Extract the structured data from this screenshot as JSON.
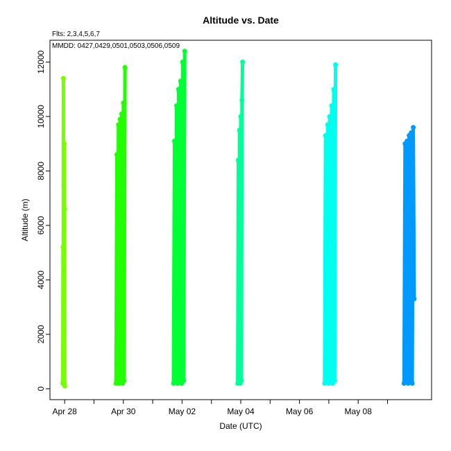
{
  "chart_data": {
    "type": "scatter",
    "title": "Altitude  vs. Date",
    "subtitle_fits": "Flts: 2,3,4,5,6,7",
    "subtitle_mmdd": "MMDD: 0427,0429,0501,0503,0506,0509",
    "xlabel": "Date (UTC)",
    "ylabel": "Altitude (m)",
    "xlim": [
      "2023-04-27T12:00",
      "2023-05-10T12:00"
    ],
    "ylim": [
      -400,
      12800
    ],
    "x_ticks": [
      {
        "date": "2023-04-28",
        "label": "Apr 28"
      },
      {
        "date": "2023-04-29",
        "label": ""
      },
      {
        "date": "2023-04-30",
        "label": "Apr 30"
      },
      {
        "date": "2023-05-01",
        "label": ""
      },
      {
        "date": "2023-05-02",
        "label": "May 02"
      },
      {
        "date": "2023-05-03",
        "label": ""
      },
      {
        "date": "2023-05-04",
        "label": "May 04"
      },
      {
        "date": "2023-05-05",
        "label": ""
      },
      {
        "date": "2023-05-06",
        "label": "May 06"
      },
      {
        "date": "2023-05-07",
        "label": ""
      },
      {
        "date": "2023-05-08",
        "label": "May 08"
      },
      {
        "date": "2023-05-09",
        "label": ""
      }
    ],
    "y_ticks": [
      0,
      2000,
      4000,
      6000,
      8000,
      10000,
      12000
    ],
    "grid": false,
    "series": [
      {
        "color": "#77ff00",
        "x": [
          "2023-04-27T22:30",
          "2023-04-27T22:40",
          "2023-04-27T22:50",
          "2023-04-27T23:00",
          "2023-04-27T23:10",
          "2023-04-27T23:20",
          "2023-04-27T23:30",
          "2023-04-27T23:40",
          "2023-04-27T23:50",
          "2023-04-28T00:00",
          "2023-04-28T00:10"
        ],
        "y": [
          200,
          5200,
          300,
          11400,
          200,
          7500,
          300,
          9000,
          200,
          6600,
          100
        ]
      },
      {
        "color": "#22ff00",
        "x": [
          "2023-04-29T18:00",
          "2023-04-29T18:40",
          "2023-04-29T19:20",
          "2023-04-29T20:00",
          "2023-04-29T20:40",
          "2023-04-29T21:20",
          "2023-04-29T22:00",
          "2023-04-29T22:40",
          "2023-04-29T23:20",
          "2023-04-30T00:00",
          "2023-04-30T00:40",
          "2023-04-30T01:20"
        ],
        "y": [
          200,
          8600,
          300,
          9700,
          200,
          9900,
          300,
          10100,
          200,
          10500,
          300,
          11800
        ]
      },
      {
        "color": "#00ff33",
        "x": [
          "2023-05-01T17:00",
          "2023-05-01T17:50",
          "2023-05-01T18:40",
          "2023-05-01T19:30",
          "2023-05-01T20:20",
          "2023-05-01T21:10",
          "2023-05-01T22:00",
          "2023-05-01T22:50",
          "2023-05-01T23:40",
          "2023-05-02T00:30",
          "2023-05-02T01:20",
          "2023-05-02T02:10"
        ],
        "y": [
          200,
          9100,
          300,
          10400,
          200,
          11000,
          300,
          11300,
          200,
          12000,
          300,
          12400
        ]
      },
      {
        "color": "#00ff99",
        "x": [
          "2023-05-03T21:30",
          "2023-05-03T22:00",
          "2023-05-03T22:30",
          "2023-05-03T23:00",
          "2023-05-03T23:30",
          "2023-05-04T00:00",
          "2023-05-04T00:30",
          "2023-05-04T01:00",
          "2023-05-04T01:30"
        ],
        "y": [
          200,
          8400,
          300,
          9500,
          200,
          10000,
          300,
          10600,
          12000
        ]
      },
      {
        "color": "#00ffee",
        "x": [
          "2023-05-06T20:30",
          "2023-05-06T21:20",
          "2023-05-06T22:10",
          "2023-05-06T23:00",
          "2023-05-06T23:50",
          "2023-05-07T00:40",
          "2023-05-07T01:30",
          "2023-05-07T02:20",
          "2023-05-07T03:10",
          "2023-05-07T04:00",
          "2023-05-07T04:50",
          "2023-05-07T05:30"
        ],
        "y": [
          200,
          9300,
          300,
          9700,
          200,
          10000,
          300,
          10400,
          200,
          11000,
          300,
          11900
        ]
      },
      {
        "color": "#0099ff",
        "x": [
          "2023-05-09T13:30",
          "2023-05-09T14:20",
          "2023-05-09T15:10",
          "2023-05-09T16:00",
          "2023-05-09T16:50",
          "2023-05-09T17:40",
          "2023-05-09T18:30",
          "2023-05-09T19:20",
          "2023-05-09T20:10",
          "2023-05-09T21:00",
          "2023-05-09T21:50"
        ],
        "y": [
          200,
          9000,
          300,
          9100,
          200,
          9300,
          300,
          9400,
          200,
          9600,
          3300
        ]
      }
    ]
  }
}
